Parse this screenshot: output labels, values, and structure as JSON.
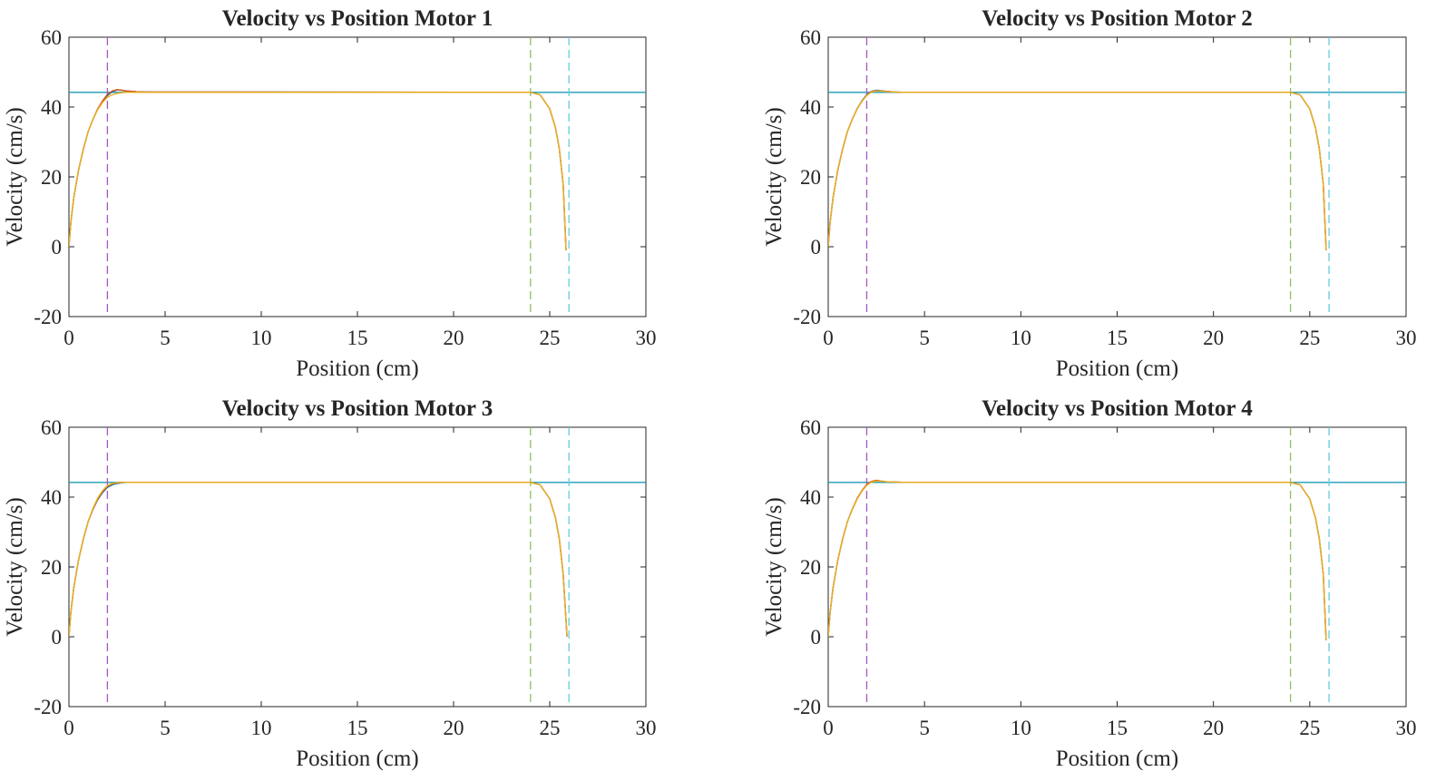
{
  "colors": {
    "axis": "#262626",
    "motor_trace_1": "#0072BD",
    "motor_trace_2": "#D95319",
    "motor_trace_3": "#EDB120",
    "target_line": "#1E9CB2",
    "accel_end_line": "#A558C2",
    "decel_start_line": "#8DC063",
    "end_position_line": "#63CCDD"
  },
  "chart_data": [
    {
      "type": "line",
      "title": "Velocity vs Position Motor 1",
      "xlabel": "Position (cm)",
      "ylabel": "Velocity (cm/s)",
      "xlim": [
        0,
        30
      ],
      "ylim": [
        -20,
        60
      ],
      "xticks": [
        0,
        5,
        10,
        15,
        20,
        25,
        30
      ],
      "yticks": [
        -20,
        0,
        20,
        40,
        60
      ],
      "grid": false,
      "legend": "none",
      "reference_lines": {
        "velocity_target": 44.2,
        "position_markers": [
          2,
          24,
          26
        ]
      },
      "series": [
        {
          "x": [
            0,
            0.1,
            0.25,
            0.5,
            0.75,
            1.0,
            1.25,
            1.5,
            1.75,
            2.0,
            2.25,
            2.5,
            2.75,
            3.0,
            3.5,
            4.0,
            24.0,
            24.5,
            25.0,
            25.3,
            25.5,
            25.7,
            25.85
          ],
          "y": [
            0,
            7,
            14,
            22,
            28,
            33,
            36.5,
            39.5,
            41.6,
            43.3,
            44.4,
            44.9,
            44.8,
            44.6,
            44.4,
            44.3,
            44.2,
            43.5,
            39.5,
            34,
            28,
            18,
            -1
          ]
        },
        {
          "x": [
            0,
            0.1,
            0.25,
            0.5,
            0.75,
            1.0,
            1.25,
            1.5,
            1.75,
            2.0,
            2.25,
            2.5,
            2.75,
            3.0,
            3.5,
            4.0,
            24.0,
            24.5,
            25.0,
            25.3,
            25.5,
            25.7,
            25.85
          ],
          "y": [
            0,
            7,
            14,
            22,
            28,
            33,
            36.5,
            39.5,
            41.8,
            43.6,
            44.6,
            45.0,
            44.8,
            44.6,
            44.4,
            44.3,
            44.2,
            43.5,
            39.5,
            34,
            28,
            18,
            -1
          ]
        },
        {
          "x": [
            0,
            0.1,
            0.25,
            0.5,
            0.75,
            1.0,
            1.25,
            1.5,
            1.75,
            2.0,
            2.25,
            2.5,
            2.75,
            3.0,
            3.5,
            4.0,
            24.0,
            24.5,
            25.0,
            25.3,
            25.5,
            25.7,
            25.85
          ],
          "y": [
            0,
            7,
            14,
            22,
            28,
            33,
            36.5,
            39.3,
            41.3,
            42.8,
            43.5,
            43.9,
            44.1,
            44.2,
            44.2,
            44.2,
            44.2,
            43.5,
            39.5,
            34,
            28,
            18,
            -1
          ]
        }
      ]
    },
    {
      "type": "line",
      "title": "Velocity vs Position Motor 2",
      "xlabel": "Position (cm)",
      "ylabel": "Velocity (cm/s)",
      "xlim": [
        0,
        30
      ],
      "ylim": [
        -20,
        60
      ],
      "xticks": [
        0,
        5,
        10,
        15,
        20,
        25,
        30
      ],
      "yticks": [
        -20,
        0,
        20,
        40,
        60
      ],
      "grid": false,
      "legend": "none",
      "reference_lines": {
        "velocity_target": 44.2,
        "position_markers": [
          2,
          24,
          26
        ]
      },
      "series": [
        {
          "x": [
            0,
            0.1,
            0.25,
            0.5,
            0.75,
            1.0,
            1.25,
            1.5,
            1.75,
            2.0,
            2.25,
            2.5,
            2.75,
            3.0,
            3.5,
            4.0,
            24.0,
            24.5,
            25.0,
            25.3,
            25.5,
            25.7,
            25.85
          ],
          "y": [
            0,
            7,
            14,
            22,
            28,
            33,
            36.5,
            39.5,
            41.8,
            43.5,
            44.5,
            44.8,
            44.7,
            44.5,
            44.3,
            44.2,
            44.2,
            43.5,
            39.5,
            34,
            28,
            18,
            -1
          ]
        },
        {
          "x": [
            0,
            0.1,
            0.25,
            0.5,
            0.75,
            1.0,
            1.25,
            1.5,
            1.75,
            2.0,
            2.25,
            2.5,
            2.75,
            3.0,
            3.5,
            4.0,
            24.0,
            24.5,
            25.0,
            25.3,
            25.5,
            25.7,
            25.85
          ],
          "y": [
            0,
            7,
            14,
            22,
            28,
            33,
            36.5,
            39.5,
            41.7,
            43.4,
            44.4,
            44.7,
            44.6,
            44.5,
            44.3,
            44.2,
            44.2,
            43.5,
            39.5,
            34,
            28,
            18,
            -1
          ]
        },
        {
          "x": [
            0,
            0.1,
            0.25,
            0.5,
            0.75,
            1.0,
            1.25,
            1.5,
            1.75,
            2.0,
            2.25,
            2.5,
            2.75,
            3.0,
            3.5,
            4.0,
            24.0,
            24.5,
            25.0,
            25.3,
            25.5,
            25.7,
            25.85
          ],
          "y": [
            0,
            7,
            14,
            22,
            28,
            33,
            36.5,
            39.4,
            41.6,
            43.3,
            44.3,
            44.6,
            44.6,
            44.4,
            44.3,
            44.2,
            44.2,
            43.5,
            39.5,
            34,
            28,
            18,
            -1
          ]
        }
      ]
    },
    {
      "type": "line",
      "title": "Velocity vs Position Motor 3",
      "xlabel": "Position (cm)",
      "ylabel": "Velocity (cm/s)",
      "xlim": [
        0,
        30
      ],
      "ylim": [
        -20,
        60
      ],
      "xticks": [
        0,
        5,
        10,
        15,
        20,
        25,
        30
      ],
      "yticks": [
        -20,
        0,
        20,
        40,
        60
      ],
      "grid": false,
      "legend": "none",
      "reference_lines": {
        "velocity_target": 44.2,
        "position_markers": [
          2,
          24,
          26
        ]
      },
      "series": [
        {
          "x": [
            0,
            0.1,
            0.25,
            0.5,
            0.75,
            1.0,
            1.25,
            1.5,
            1.75,
            2.0,
            2.25,
            2.5,
            2.75,
            3.0,
            3.5,
            4.0,
            24.0,
            24.5,
            25.0,
            25.3,
            25.5,
            25.7,
            25.9
          ],
          "y": [
            0,
            7,
            14,
            22,
            28,
            33,
            36.5,
            39.3,
            41.3,
            42.8,
            43.5,
            43.9,
            44.1,
            44.2,
            44.2,
            44.2,
            44.2,
            43.5,
            39.5,
            34,
            28,
            18,
            0
          ]
        },
        {
          "x": [
            0,
            0.1,
            0.25,
            0.5,
            0.75,
            1.0,
            1.25,
            1.5,
            1.75,
            2.0,
            2.25,
            2.5,
            2.75,
            3.0,
            3.5,
            4.0,
            24.0,
            24.5,
            25.0,
            25.3,
            25.5,
            25.7,
            25.9
          ],
          "y": [
            0,
            7,
            14,
            22,
            28,
            33,
            36.6,
            39.5,
            41.6,
            43.1,
            43.8,
            44.1,
            44.2,
            44.2,
            44.2,
            44.2,
            44.2,
            43.5,
            39.5,
            34,
            28,
            18,
            0
          ]
        },
        {
          "x": [
            0,
            0.1,
            0.25,
            0.5,
            0.75,
            1.0,
            1.25,
            1.5,
            1.75,
            2.0,
            2.25,
            2.5,
            2.75,
            3.0,
            3.5,
            4.0,
            24.0,
            24.5,
            25.0,
            25.3,
            25.5,
            25.7,
            25.9
          ],
          "y": [
            0,
            7,
            14,
            22,
            28,
            33,
            36.8,
            39.8,
            41.9,
            43.3,
            43.9,
            44.1,
            44.2,
            44.2,
            44.2,
            44.2,
            44.2,
            43.5,
            39.5,
            34,
            28,
            18,
            0
          ]
        }
      ]
    },
    {
      "type": "line",
      "title": "Velocity vs Position Motor 4",
      "xlabel": "Position (cm)",
      "ylabel": "Velocity (cm/s)",
      "xlim": [
        0,
        30
      ],
      "ylim": [
        -20,
        60
      ],
      "xticks": [
        0,
        5,
        10,
        15,
        20,
        25,
        30
      ],
      "yticks": [
        -20,
        0,
        20,
        40,
        60
      ],
      "grid": false,
      "legend": "none",
      "reference_lines": {
        "velocity_target": 44.2,
        "position_markers": [
          2,
          24,
          26
        ]
      },
      "series": [
        {
          "x": [
            0,
            0.1,
            0.25,
            0.5,
            0.75,
            1.0,
            1.25,
            1.5,
            1.75,
            2.0,
            2.25,
            2.5,
            2.75,
            3.0,
            3.5,
            4.0,
            24.0,
            24.5,
            25.0,
            25.3,
            25.5,
            25.7,
            25.85
          ],
          "y": [
            0,
            7,
            14,
            22,
            28,
            33,
            36.5,
            39.5,
            41.8,
            43.5,
            44.4,
            44.7,
            44.6,
            44.4,
            44.3,
            44.2,
            44.2,
            43.5,
            39.5,
            34,
            28,
            18,
            -1
          ]
        },
        {
          "x": [
            0,
            0.1,
            0.25,
            0.5,
            0.75,
            1.0,
            1.25,
            1.5,
            1.75,
            2.0,
            2.25,
            2.5,
            2.75,
            3.0,
            3.5,
            4.0,
            24.0,
            24.5,
            25.0,
            25.3,
            25.5,
            25.7,
            25.85
          ],
          "y": [
            0,
            7,
            14,
            22,
            28,
            33,
            36.5,
            39.6,
            41.9,
            43.6,
            44.5,
            44.8,
            44.6,
            44.4,
            44.3,
            44.2,
            44.2,
            43.5,
            39.5,
            34,
            28,
            18,
            -1
          ]
        },
        {
          "x": [
            0,
            0.1,
            0.25,
            0.5,
            0.75,
            1.0,
            1.25,
            1.5,
            1.75,
            2.0,
            2.25,
            2.5,
            2.75,
            3.0,
            3.5,
            4.0,
            24.0,
            24.5,
            25.0,
            25.3,
            25.5,
            25.7,
            25.85
          ],
          "y": [
            0,
            7,
            14,
            22,
            28,
            33,
            36.4,
            39.4,
            41.7,
            43.4,
            44.3,
            44.6,
            44.6,
            44.4,
            44.3,
            44.2,
            44.2,
            43.5,
            39.5,
            34,
            28,
            18,
            -1
          ]
        }
      ]
    }
  ]
}
